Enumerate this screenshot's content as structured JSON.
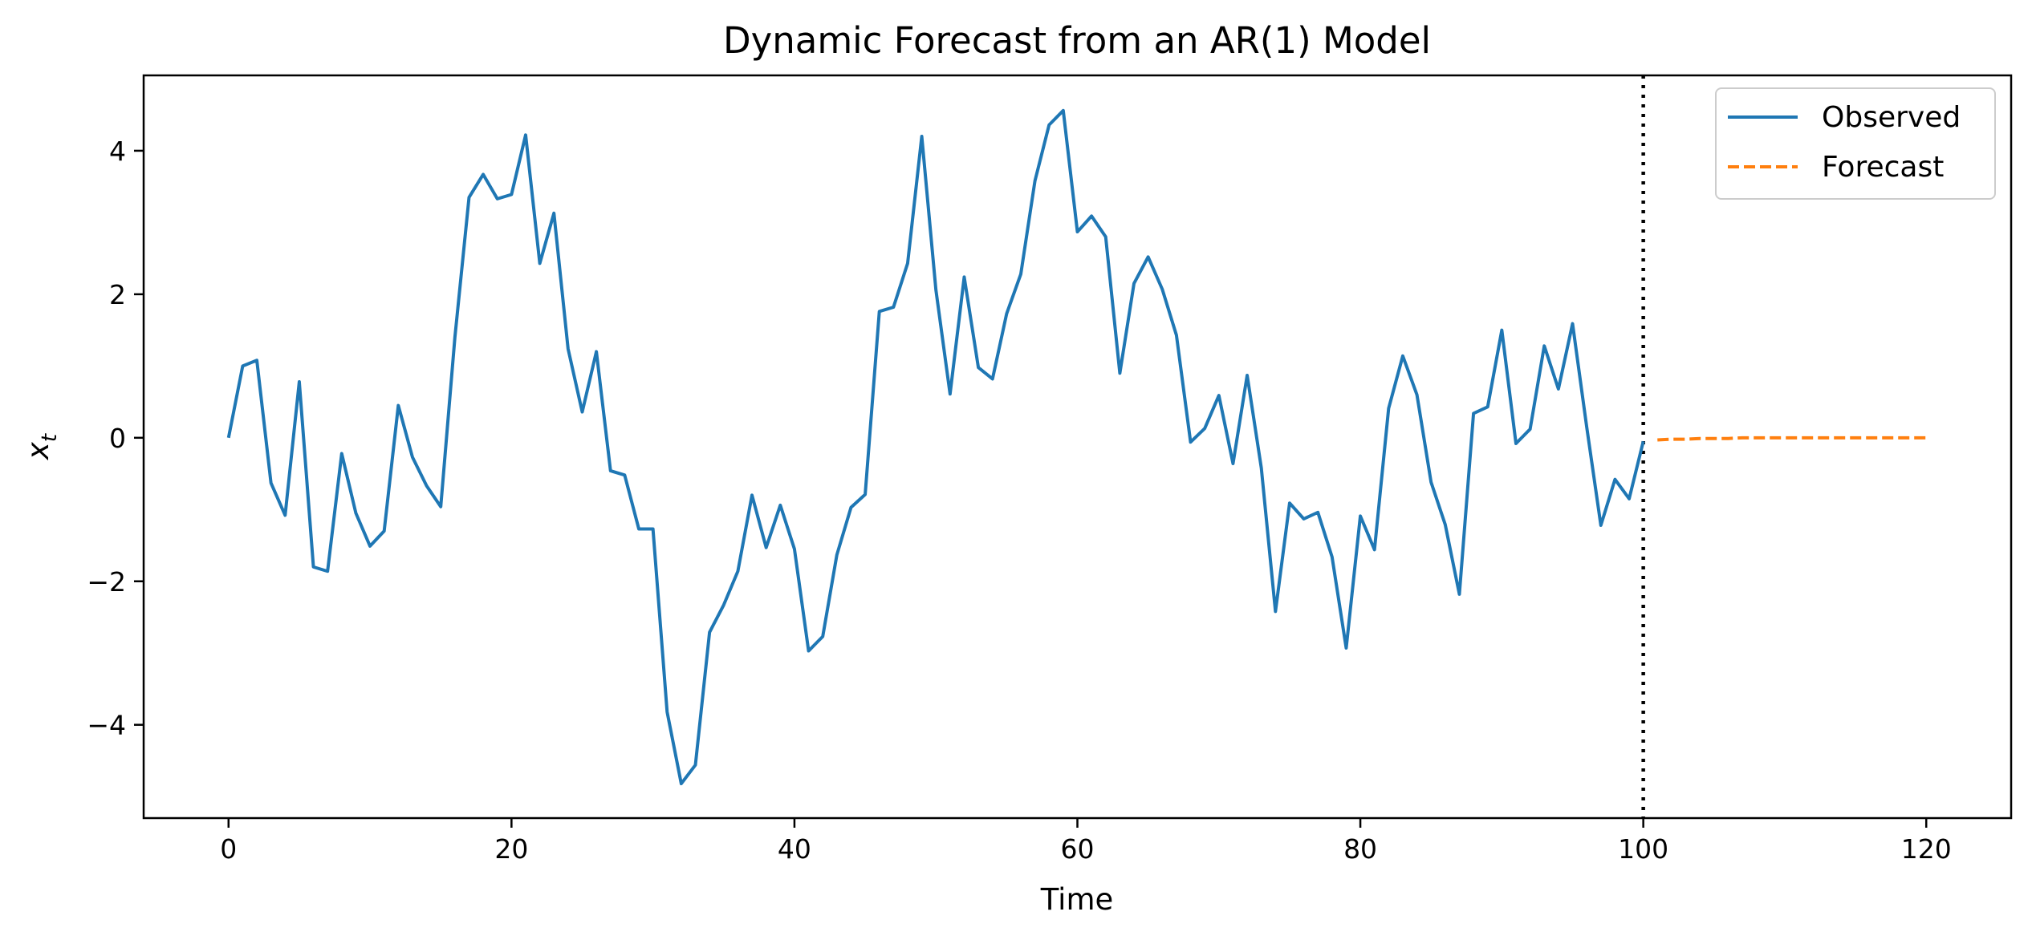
{
  "chart_data": {
    "type": "line",
    "title": "Dynamic Forecast from an AR(1) Model",
    "xlabel": "Time",
    "ylabel": "x",
    "ylabel_subscript": "t",
    "xlim": [
      -6,
      126
    ],
    "ylim": [
      -5.3,
      5.05
    ],
    "xticks": [
      0,
      20,
      40,
      60,
      80,
      100,
      120
    ],
    "yticks": [
      -4,
      -2,
      0,
      2,
      4
    ],
    "grid": false,
    "legend_position": "top-right",
    "forecast_origin": 100,
    "series": [
      {
        "name": "Observed",
        "color": "#1f77b4",
        "style": "solid",
        "x": [
          0,
          1,
          2,
          3,
          4,
          5,
          6,
          7,
          8,
          9,
          10,
          11,
          12,
          13,
          14,
          15,
          16,
          17,
          18,
          19,
          20,
          21,
          22,
          23,
          24,
          25,
          26,
          27,
          28,
          29,
          30,
          31,
          32,
          33,
          34,
          35,
          36,
          37,
          38,
          39,
          40,
          41,
          42,
          43,
          44,
          45,
          46,
          47,
          48,
          49,
          50,
          51,
          52,
          53,
          54,
          55,
          56,
          57,
          58,
          59,
          60,
          61,
          62,
          63,
          64,
          65,
          66,
          67,
          68,
          69,
          70,
          71,
          72,
          73,
          74,
          75,
          76,
          77,
          78,
          79,
          80,
          81,
          82,
          83,
          84,
          85,
          86,
          87,
          88,
          89,
          90,
          91,
          92,
          93,
          94,
          95,
          96,
          97,
          98,
          99,
          100
        ],
        "values": [
          0.0,
          1.0,
          1.08,
          -0.63,
          -1.08,
          0.78,
          -1.8,
          -1.86,
          -0.22,
          -1.05,
          -1.51,
          -1.3,
          0.45,
          -0.27,
          -0.67,
          -0.96,
          1.4,
          3.35,
          3.67,
          3.33,
          3.39,
          4.22,
          2.43,
          3.13,
          1.24,
          0.36,
          1.2,
          -0.46,
          -0.52,
          -1.27,
          -1.27,
          -3.82,
          -4.82,
          -4.56,
          -2.71,
          -2.33,
          -1.86,
          -0.8,
          -1.53,
          -0.94,
          -1.55,
          -2.97,
          -2.77,
          -1.63,
          -0.97,
          -0.79,
          1.76,
          1.82,
          2.43,
          4.2,
          2.06,
          0.61,
          2.24,
          0.98,
          0.82,
          1.73,
          2.28,
          3.58,
          4.36,
          4.56,
          2.87,
          3.09,
          2.8,
          0.9,
          2.15,
          2.52,
          2.07,
          1.43,
          -0.06,
          0.13,
          0.59,
          -0.36,
          0.87,
          -0.42,
          -2.42,
          -0.91,
          -1.13,
          -1.04,
          -1.66,
          -2.93,
          -1.09,
          -1.56,
          0.41,
          1.14,
          0.6,
          -0.62,
          -1.21,
          -2.18,
          0.34,
          0.43,
          1.5,
          -0.08,
          0.12,
          1.28,
          0.68,
          1.59,
          0.15,
          -1.22,
          -0.58,
          -0.85,
          -0.05
        ]
      },
      {
        "name": "Forecast",
        "color": "#ff7f0e",
        "style": "dashed",
        "x": [
          101,
          102,
          103,
          104,
          105,
          106,
          107,
          108,
          109,
          110,
          111,
          112,
          113,
          114,
          115,
          116,
          117,
          118,
          119,
          120
        ],
        "values": [
          -0.03,
          -0.02,
          -0.02,
          -0.01,
          -0.01,
          -0.01,
          0.0,
          0.0,
          0.0,
          0.0,
          0.0,
          0.0,
          0.0,
          0.0,
          0.0,
          0.0,
          0.0,
          0.0,
          0.0,
          0.0
        ]
      }
    ]
  }
}
